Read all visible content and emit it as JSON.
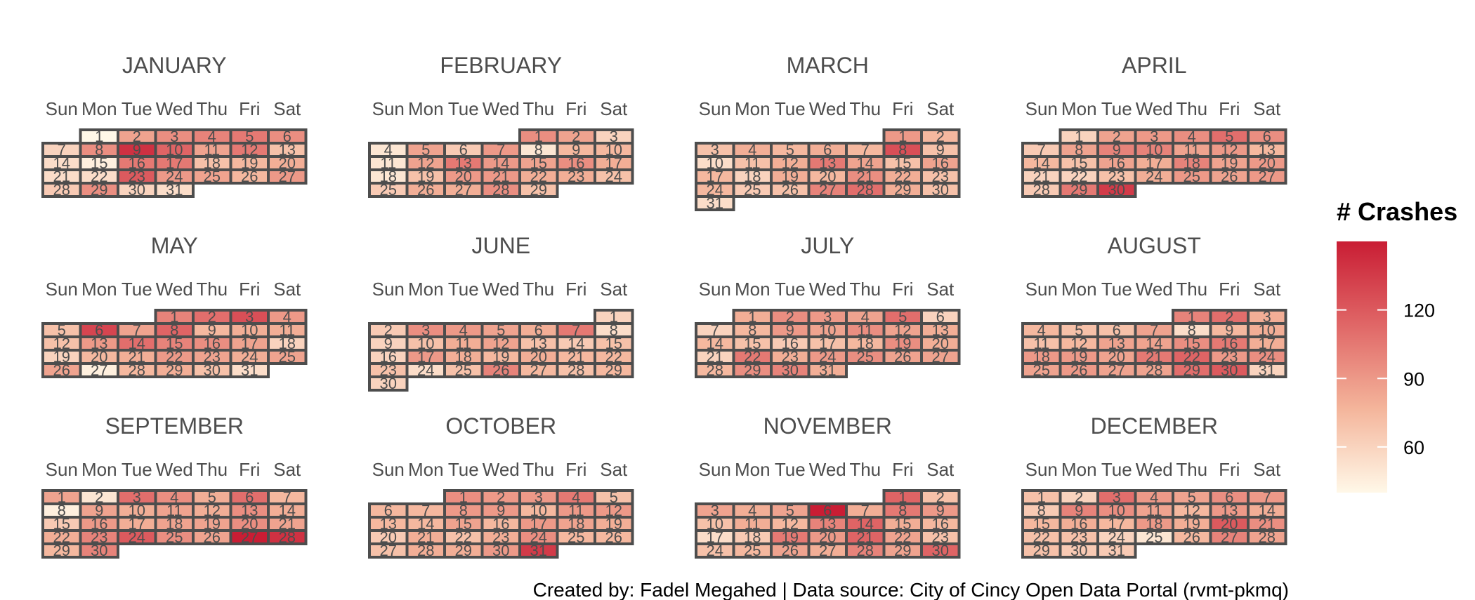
{
  "chart_data": {
    "type": "heatmap",
    "subtype": "calendar",
    "weekdays": [
      "Sun",
      "Mon",
      "Tue",
      "Wed",
      "Thu",
      "Fri",
      "Sat"
    ],
    "months": [
      {
        "name": "JANUARY",
        "start_weekday": 1,
        "days": 31,
        "values": [
          40,
          85,
          95,
          100,
          105,
          95,
          60,
          95,
          140,
          115,
          85,
          105,
          70,
          55,
          45,
          105,
          105,
          70,
          75,
          80,
          55,
          55,
          120,
          90,
          85,
          75,
          90,
          65,
          95,
          60,
          55
        ]
      },
      {
        "name": "FEBRUARY",
        "start_weekday": 4,
        "days": 29,
        "values": [
          95,
          85,
          60,
          50,
          85,
          65,
          90,
          50,
          75,
          75,
          50,
          85,
          105,
          90,
          85,
          95,
          80,
          50,
          70,
          90,
          90,
          80,
          80,
          70,
          65,
          80,
          80,
          95,
          70
        ]
      },
      {
        "name": "MARCH",
        "start_weekday": 5,
        "days": 31,
        "values": [
          90,
          75,
          70,
          80,
          75,
          80,
          75,
          125,
          70,
          55,
          70,
          80,
          105,
          85,
          70,
          85,
          75,
          60,
          80,
          75,
          95,
          80,
          70,
          75,
          65,
          70,
          100,
          110,
          80,
          70,
          55
        ]
      },
      {
        "name": "APRIL",
        "start_weekday": 1,
        "days": 30,
        "values": [
          60,
          85,
          90,
          95,
          110,
          95,
          65,
          85,
          100,
          100,
          85,
          90,
          75,
          75,
          70,
          85,
          80,
          100,
          85,
          90,
          60,
          60,
          70,
          80,
          90,
          85,
          90,
          65,
          105,
          135
        ]
      },
      {
        "name": "MAY",
        "start_weekday": 3,
        "days": 31,
        "values": [
          100,
          110,
          125,
          90,
          70,
          130,
          85,
          115,
          75,
          80,
          80,
          70,
          90,
          110,
          100,
          95,
          85,
          60,
          60,
          75,
          80,
          90,
          85,
          80,
          85,
          85,
          45,
          75,
          80,
          70,
          55
        ]
      },
      {
        "name": "JUNE",
        "start_weekday": 6,
        "days": 30,
        "values": [
          60,
          65,
          95,
          90,
          85,
          80,
          105,
          55,
          60,
          70,
          80,
          85,
          70,
          65,
          70,
          60,
          90,
          80,
          75,
          80,
          75,
          75,
          70,
          55,
          70,
          100,
          75,
          70,
          75,
          60
        ]
      },
      {
        "name": "JULY",
        "start_weekday": 1,
        "days": 31,
        "values": [
          80,
          95,
          90,
          85,
          110,
          60,
          60,
          75,
          90,
          85,
          95,
          85,
          80,
          75,
          70,
          65,
          70,
          75,
          95,
          80,
          60,
          105,
          80,
          90,
          95,
          85,
          85,
          75,
          95,
          100,
          80
        ]
      },
      {
        "name": "AUGUST",
        "start_weekday": 4,
        "days": 31,
        "values": [
          100,
          110,
          80,
          75,
          70,
          70,
          85,
          55,
          75,
          80,
          70,
          75,
          85,
          85,
          95,
          105,
          80,
          90,
          90,
          85,
          105,
          115,
          90,
          95,
          85,
          90,
          85,
          85,
          110,
          120,
          60
        ]
      },
      {
        "name": "SEPTEMBER",
        "start_weekday": 0,
        "days": 30,
        "values": [
          85,
          50,
          110,
          95,
          80,
          110,
          75,
          45,
          85,
          80,
          85,
          80,
          95,
          80,
          65,
          90,
          80,
          85,
          85,
          95,
          85,
          80,
          100,
          120,
          95,
          85,
          155,
          140,
          75,
          100
        ]
      },
      {
        "name": "OCTOBER",
        "start_weekday": 2,
        "days": 31,
        "values": [
          95,
          90,
          90,
          105,
          70,
          75,
          75,
          90,
          90,
          75,
          90,
          90,
          75,
          75,
          85,
          75,
          90,
          85,
          80,
          65,
          80,
          70,
          80,
          95,
          75,
          75,
          70,
          80,
          80,
          90,
          135
        ]
      },
      {
        "name": "NOVEMBER",
        "start_weekday": 5,
        "days": 30,
        "values": [
          115,
          70,
          85,
          80,
          85,
          160,
          80,
          105,
          90,
          70,
          80,
          75,
          100,
          115,
          80,
          75,
          55,
          65,
          105,
          90,
          115,
          85,
          70,
          70,
          75,
          85,
          80,
          100,
          85,
          115
        ]
      },
      {
        "name": "DECEMBER",
        "start_weekday": 0,
        "days": 31,
        "values": [
          70,
          60,
          110,
          90,
          85,
          95,
          90,
          65,
          100,
          95,
          85,
          75,
          90,
          80,
          75,
          80,
          75,
          90,
          80,
          120,
          95,
          70,
          70,
          60,
          50,
          75,
          100,
          85,
          70,
          65,
          65
        ]
      }
    ],
    "legend": {
      "title": "# Crashes",
      "ticks": [
        60,
        90,
        120
      ],
      "range": [
        40,
        150
      ],
      "colors": [
        "#fff8e8",
        "#f4b59b",
        "#e06767",
        "#c91d34"
      ]
    }
  },
  "caption": "Created by: Fadel Megahed | Data source: City of Cincy Open Data Portal (rvmt-pkmq)"
}
